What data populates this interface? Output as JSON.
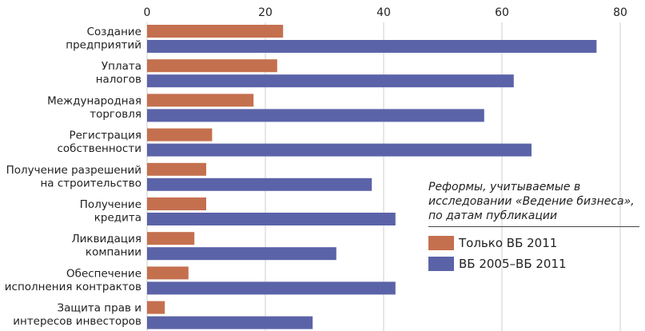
{
  "chart_data": {
    "type": "bar",
    "orientation": "horizontal",
    "categories": [
      [
        "Создание",
        "предприятий"
      ],
      [
        "Уплата",
        "налогов"
      ],
      [
        "Международная",
        "торговля"
      ],
      [
        "Регистрация",
        "собственности"
      ],
      [
        "Получение разрешений",
        "на строительство"
      ],
      [
        "Получение",
        "кредита"
      ],
      [
        "Ликвидация",
        "компании"
      ],
      [
        "Обеспечение",
        "исполнения контрактов"
      ],
      [
        "Защита прав и",
        "интересов инвесторов"
      ]
    ],
    "series": [
      {
        "name": "Только ВБ 2011",
        "color": "#c4704f",
        "values": [
          23,
          22,
          18,
          11,
          10,
          10,
          8,
          7,
          3
        ]
      },
      {
        "name": "ВБ 2005–ВБ 2011",
        "color": "#5b63a8",
        "values": [
          76,
          62,
          57,
          65,
          38,
          42,
          32,
          42,
          28
        ]
      }
    ],
    "xlim": [
      0,
      80
    ],
    "xticks": [
      "0",
      "20",
      "40",
      "60",
      "80"
    ],
    "xaxis_position": "top",
    "grid": "vertical",
    "legend": {
      "title": "Реформы, учитываемые в исследовании «Ведение бизнеса», по датам публикации",
      "title_lines": [
        "Реформы, учитываемые в",
        "исследовании «Ведение бизнеса»,",
        "по датам публикации"
      ],
      "placement": "right"
    }
  }
}
